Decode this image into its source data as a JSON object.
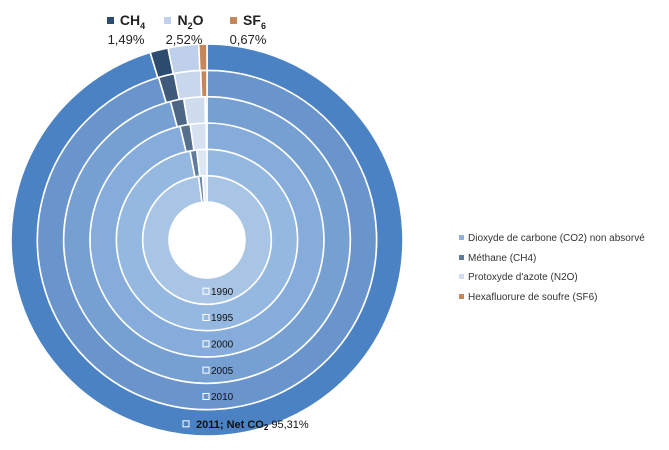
{
  "chart_data": {
    "type": "donut",
    "rings": [
      "1990",
      "1995",
      "2000",
      "2005",
      "2010",
      "2011; Net CO2"
    ],
    "outer_ring_label": {
      "main": "2011; Net CO",
      "sub": "2",
      "value": "95,31%"
    },
    "series": [
      {
        "name": "Dioxyde de carbone (CO2) non absorvé",
        "values": [
          97.9,
          97.0,
          96.3,
          95.9,
          95.4,
          95.31
        ]
      },
      {
        "name": "Méthane (CH4)",
        "values": [
          1.0,
          1.2,
          1.4,
          1.5,
          1.5,
          1.49
        ]
      },
      {
        "name": "Protoxyde d'azote (N2O)",
        "values": [
          1.1,
          1.8,
          2.2,
          2.4,
          2.5,
          2.52
        ]
      },
      {
        "name": "Hexafluorure de soufre (SF6)",
        "values": [
          0.0,
          0.0,
          0.1,
          0.2,
          0.6,
          0.67
        ]
      }
    ],
    "gas_labels": [
      {
        "main": "CH",
        "sub": "4",
        "value": "1,49%"
      },
      {
        "main": "N",
        "sub": "2",
        "main2": "O",
        "value": "2,52%"
      },
      {
        "main": "SF",
        "sub": "6",
        "value": "0,67%"
      }
    ],
    "legend_position": "right"
  },
  "colors": {
    "co2_rings": [
      "#a9c5e6",
      "#95b8e0",
      "#85acda",
      "#769fd2",
      "#6995cc",
      "#4b82c4"
    ],
    "ch4_rings": [
      "#6f87a3",
      "#607b9b",
      "#566f8d",
      "#4d6684",
      "#3f5a7b",
      "#2c4b6f"
    ],
    "n2o_rings": [
      "#e4ecf6",
      "#dde7f3",
      "#d6e2f1",
      "#cfdcee",
      "#c8d7ec",
      "#bfd1ea"
    ],
    "sf6": "#c5875a",
    "ring_separator": "#ffffff",
    "legend": [
      "#8fb1dc",
      "#5f7a99",
      "#d0dcec",
      "#c5875a"
    ]
  }
}
